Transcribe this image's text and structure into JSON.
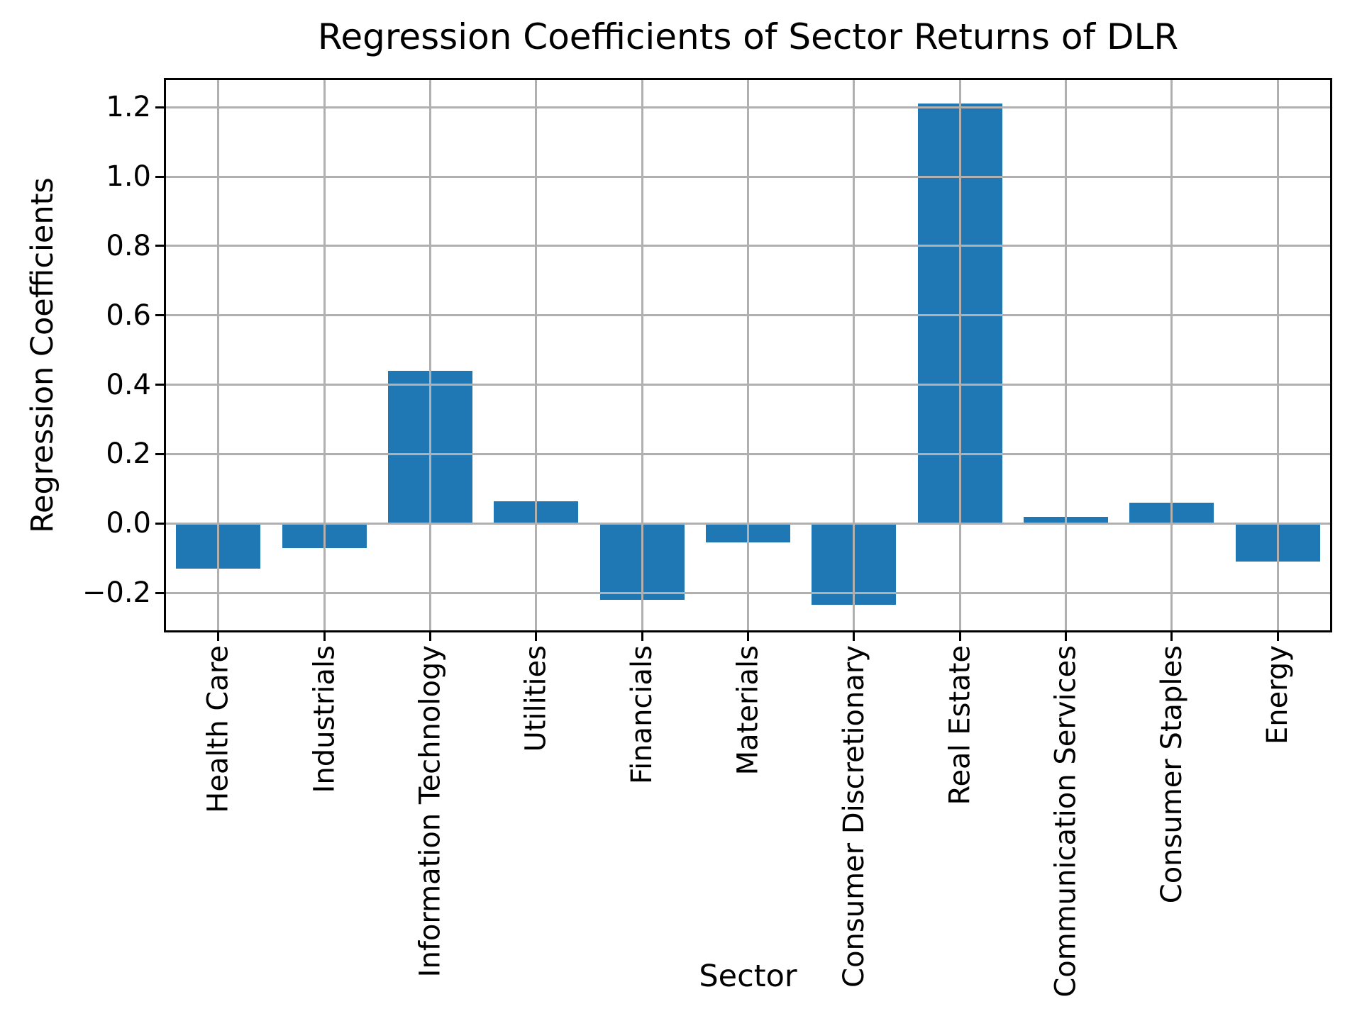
{
  "chart_data": {
    "type": "bar",
    "title": "Regression Coefficients of Sector Returns of DLR",
    "xlabel": "Sector",
    "ylabel": "Regression Coefficients",
    "categories": [
      "Health Care",
      "Industrials",
      "Information Technology",
      "Utilities",
      "Financials",
      "Materials",
      "Consumer Discretionary",
      "Real Estate",
      "Communication Services",
      "Consumer Staples",
      "Energy"
    ],
    "values": [
      -0.13,
      -0.07,
      0.44,
      0.065,
      -0.22,
      -0.055,
      -0.235,
      1.21,
      0.02,
      0.06,
      -0.11
    ],
    "ylim": [
      -0.31,
      1.28
    ],
    "ytick_values": [
      1.2,
      1.0,
      0.8,
      0.6,
      0.4,
      0.2,
      0.0,
      -0.2
    ],
    "ytick_labels": [
      "1.2",
      "1.0",
      "0.8",
      "0.6",
      "0.4",
      "0.2",
      "0.0",
      "−0.2"
    ],
    "grid": true,
    "legend": false,
    "bar_color": "#1f77b4",
    "grid_color": "#b0b0b0",
    "axis_color": "#000000",
    "background_color": "#ffffff"
  }
}
